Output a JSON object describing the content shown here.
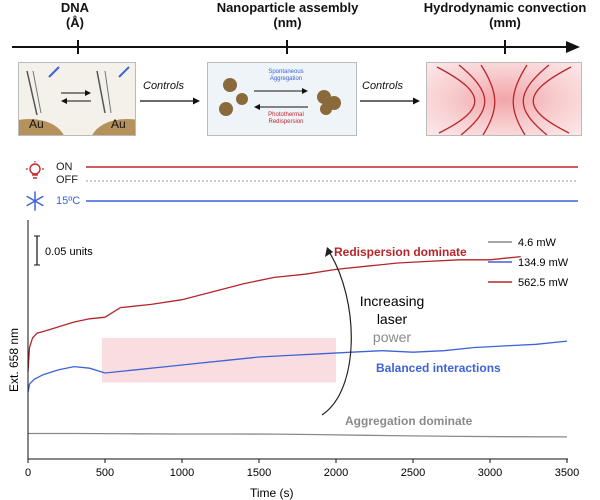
{
  "top_scale": {
    "items": [
      {
        "line1": "DNA",
        "line2": "(Å)"
      },
      {
        "line1": "Nanoparticle assembly",
        "line2": "(nm)"
      },
      {
        "line1": "Hydrodynamic convection",
        "line2": "(mm)"
      }
    ],
    "controls_1": "Controls",
    "controls_2": "Controls",
    "panel1": {
      "au_left": "Au",
      "au_right": "Au"
    },
    "panel2": {
      "top_label_1": "Spontaneous",
      "top_label_2": "Aggregation",
      "bottom_label_1": "Photothermal",
      "bottom_label_2": "Redispersion"
    }
  },
  "indicators": {
    "on_label": "ON",
    "off_label": "OFF",
    "temp_label": "15ºC",
    "on_color": "#c0282c",
    "temp_color": "#3d63d6",
    "icons": [
      "lightbulb-icon",
      "snowflake-icon"
    ]
  },
  "chart_data": {
    "type": "line",
    "xlabel": "Time (s)",
    "ylabel": "Ext. 658 nm",
    "xlim": [
      0,
      3500
    ],
    "x_ticks": [
      0,
      500,
      1000,
      1500,
      2000,
      2500,
      3000,
      3500
    ],
    "ylim": [
      0,
      1.5
    ],
    "scale_bar_label": "0.05 units",
    "legend_position": "top-right",
    "series": [
      {
        "name": "4.6 mW",
        "color": "#8a8a8a",
        "x": [
          0,
          50,
          300,
          700,
          1000,
          1300,
          1600,
          1900,
          2200,
          2500,
          2800,
          3100,
          3500
        ],
        "y": [
          0.16,
          0.16,
          0.16,
          0.158,
          0.157,
          0.157,
          0.156,
          0.153,
          0.149,
          0.145,
          0.142,
          0.14,
          0.139
        ]
      },
      {
        "name": "134.9 mW",
        "color": "#3d63d6",
        "x": [
          0,
          10,
          40,
          100,
          200,
          300,
          400,
          500,
          700,
          900,
          1100,
          1300,
          1500,
          1700,
          1900,
          2100,
          2300,
          2500,
          2700,
          2900,
          3100,
          3300,
          3500
        ],
        "y": [
          0.42,
          0.47,
          0.5,
          0.53,
          0.56,
          0.58,
          0.57,
          0.54,
          0.56,
          0.58,
          0.6,
          0.62,
          0.64,
          0.65,
          0.66,
          0.67,
          0.68,
          0.67,
          0.68,
          0.7,
          0.71,
          0.72,
          0.74
        ]
      },
      {
        "name": "562.5 mW",
        "color": "#b5262b",
        "x": [
          0,
          10,
          30,
          60,
          100,
          200,
          300,
          400,
          500,
          600,
          800,
          1000,
          1200,
          1400,
          1600,
          1800,
          2000,
          2200,
          2400,
          2600,
          2800,
          3000,
          3200
        ],
        "y": [
          0.55,
          0.7,
          0.76,
          0.79,
          0.8,
          0.83,
          0.86,
          0.88,
          0.89,
          0.95,
          0.97,
          1.0,
          1.05,
          1.1,
          1.14,
          1.16,
          1.19,
          1.21,
          1.23,
          1.24,
          1.25,
          1.25,
          1.27
        ]
      }
    ],
    "annotations": [
      {
        "text": "Redispersion dominate",
        "color": "#b5262b"
      },
      {
        "text": "Balanced interactions",
        "color": "#3d63d6"
      },
      {
        "text": "Aggregation dominate",
        "color": "#8a8a8a"
      }
    ],
    "arrow_label": {
      "line1": "Increasing",
      "line2": "laser",
      "line3": "power"
    },
    "highlight_region": {
      "x_from": 480,
      "x_to": 2000,
      "y_from": 0.48,
      "y_to": 0.76,
      "color": "#f9dde0"
    }
  }
}
